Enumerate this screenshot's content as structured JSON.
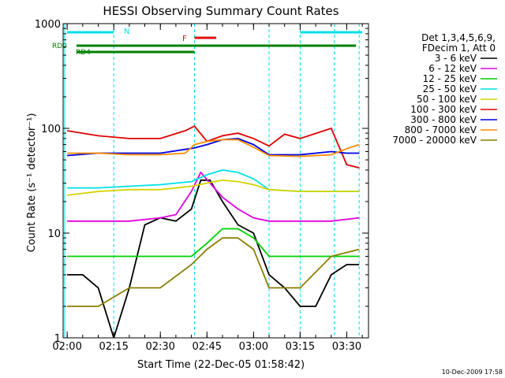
{
  "chart_data": {
    "type": "line",
    "title": "HESSI Observing Summary Count Rates",
    "xlabel": "Start Time (22-Dec-05 01:58:42)",
    "ylabel": "Count Rate (s⁻¹ detector⁻¹)",
    "y_scale": "log",
    "ylim": [
      1,
      1000
    ],
    "xlim": [
      "01:58:42",
      "03:37:00"
    ],
    "x_ticks": [
      "02:00",
      "02:15",
      "02:30",
      "02:45",
      "03:00",
      "03:15",
      "03:30"
    ],
    "y_ticks": [
      "1",
      "10",
      "100",
      "1000"
    ],
    "legend_title": [
      "Det 1,3,4,5,6,9,",
      "FDecim 1, Att 0"
    ],
    "legend_position": "right",
    "footer": "10-Dec-2009 17:58",
    "flags": [
      {
        "label": "N",
        "color": "#00e0e8",
        "segments": [
          [
            "02:00",
            "02:15"
          ],
          [
            "03:15",
            "03:35"
          ]
        ]
      },
      {
        "label": "F",
        "color": "#e01010",
        "segments": [
          [
            "02:41",
            "02:48"
          ]
        ]
      },
      {
        "label": "RD0",
        "color": "#008000",
        "segments": [
          [
            "02:03",
            "02:41"
          ],
          [
            "02:41",
            "03:05"
          ],
          [
            "03:05",
            "03:26"
          ],
          [
            "03:26",
            "03:33"
          ]
        ]
      },
      {
        "label": "RD4",
        "color": "#008000",
        "segments": [
          [
            "02:03",
            "02:41"
          ]
        ]
      }
    ],
    "transitions": [
      "02:15",
      "02:41",
      "03:05",
      "03:15",
      "03:26",
      "03:34"
    ],
    "series": [
      {
        "name": "3 - 6 keV",
        "color": "#000000",
        "x": [
          "02:00",
          "02:05",
          "02:10",
          "02:15",
          "02:20",
          "02:25",
          "02:30",
          "02:35",
          "02:40",
          "02:43",
          "02:46",
          "02:50",
          "02:55",
          "03:00",
          "03:05",
          "03:10",
          "03:15",
          "03:20",
          "03:25",
          "03:30",
          "03:34"
        ],
        "y": [
          4,
          4,
          3,
          1,
          3,
          12,
          14,
          13,
          17,
          32,
          32,
          20,
          12,
          10,
          4,
          3,
          2,
          2,
          4,
          5,
          5
        ]
      },
      {
        "name": "6 - 12 keV",
        "color": "#e000e0",
        "x": [
          "02:00",
          "02:10",
          "02:20",
          "02:30",
          "02:35",
          "02:40",
          "02:43",
          "02:46",
          "02:50",
          "02:55",
          "03:00",
          "03:05",
          "03:15",
          "03:25",
          "03:34"
        ],
        "y": [
          13,
          13,
          13,
          14,
          15,
          25,
          38,
          30,
          22,
          17,
          14,
          13,
          13,
          13,
          14
        ]
      },
      {
        "name": "12 - 25 keV",
        "color": "#00d000",
        "x": [
          "02:00",
          "02:10",
          "02:20",
          "02:30",
          "02:40",
          "02:45",
          "02:50",
          "02:55",
          "03:00",
          "03:05",
          "03:15",
          "03:25",
          "03:34"
        ],
        "y": [
          6,
          6,
          6,
          6,
          6,
          8,
          11,
          11,
          9,
          6,
          6,
          6,
          6
        ]
      },
      {
        "name": "25 - 50 keV",
        "color": "#00e0e8",
        "x": [
          "02:00",
          "02:10",
          "02:20",
          "02:30",
          "02:40",
          "02:45",
          "02:50",
          "02:55",
          "03:00",
          "03:05",
          "03:15",
          "03:25",
          "03:34"
        ],
        "y": [
          27,
          27,
          28,
          29,
          31,
          36,
          40,
          38,
          33,
          26,
          25,
          25,
          25
        ]
      },
      {
        "name": "50 - 100 keV",
        "color": "#d4d400",
        "x": [
          "02:00",
          "02:10",
          "02:20",
          "02:30",
          "02:40",
          "02:45",
          "02:50",
          "02:55",
          "03:00",
          "03:05",
          "03:15",
          "03:25",
          "03:34"
        ],
        "y": [
          23,
          25,
          26,
          26,
          28,
          30,
          32,
          31,
          29,
          26,
          25,
          25,
          25
        ]
      },
      {
        "name": "100 - 300 keV",
        "color": "#e00000",
        "x": [
          "02:00",
          "02:10",
          "02:20",
          "02:30",
          "02:38",
          "02:41",
          "02:45",
          "02:50",
          "02:55",
          "03:00",
          "03:05",
          "03:10",
          "03:15",
          "03:25",
          "03:30",
          "03:34"
        ],
        "y": [
          95,
          85,
          80,
          80,
          95,
          105,
          75,
          85,
          90,
          80,
          68,
          88,
          80,
          100,
          45,
          42
        ]
      },
      {
        "name": "300 - 800 keV",
        "color": "#0000e0",
        "x": [
          "02:00",
          "02:10",
          "02:20",
          "02:30",
          "02:38",
          "02:41",
          "02:45",
          "02:50",
          "02:55",
          "03:00",
          "03:05",
          "03:15",
          "03:25",
          "03:30",
          "03:34"
        ],
        "y": [
          55,
          58,
          58,
          58,
          63,
          65,
          70,
          78,
          80,
          70,
          56,
          56,
          60,
          58,
          58
        ]
      },
      {
        "name": "800 - 7000 keV",
        "color": "#ff8c00",
        "x": [
          "02:00",
          "02:10",
          "02:20",
          "02:30",
          "02:38",
          "02:41",
          "02:45",
          "02:50",
          "02:55",
          "03:00",
          "03:05",
          "03:15",
          "03:25",
          "03:30",
          "03:34"
        ],
        "y": [
          58,
          58,
          56,
          56,
          58,
          70,
          75,
          78,
          78,
          66,
          55,
          54,
          56,
          64,
          70
        ]
      },
      {
        "name": "7000 - 20000 keV",
        "color": "#8b7d00",
        "x": [
          "02:00",
          "02:10",
          "02:20",
          "02:30",
          "02:40",
          "02:45",
          "02:50",
          "02:55",
          "03:00",
          "03:05",
          "03:15",
          "03:25",
          "03:34"
        ],
        "y": [
          2,
          2,
          3,
          3,
          5,
          7,
          9,
          9,
          7,
          3,
          3,
          6,
          7
        ]
      }
    ]
  }
}
